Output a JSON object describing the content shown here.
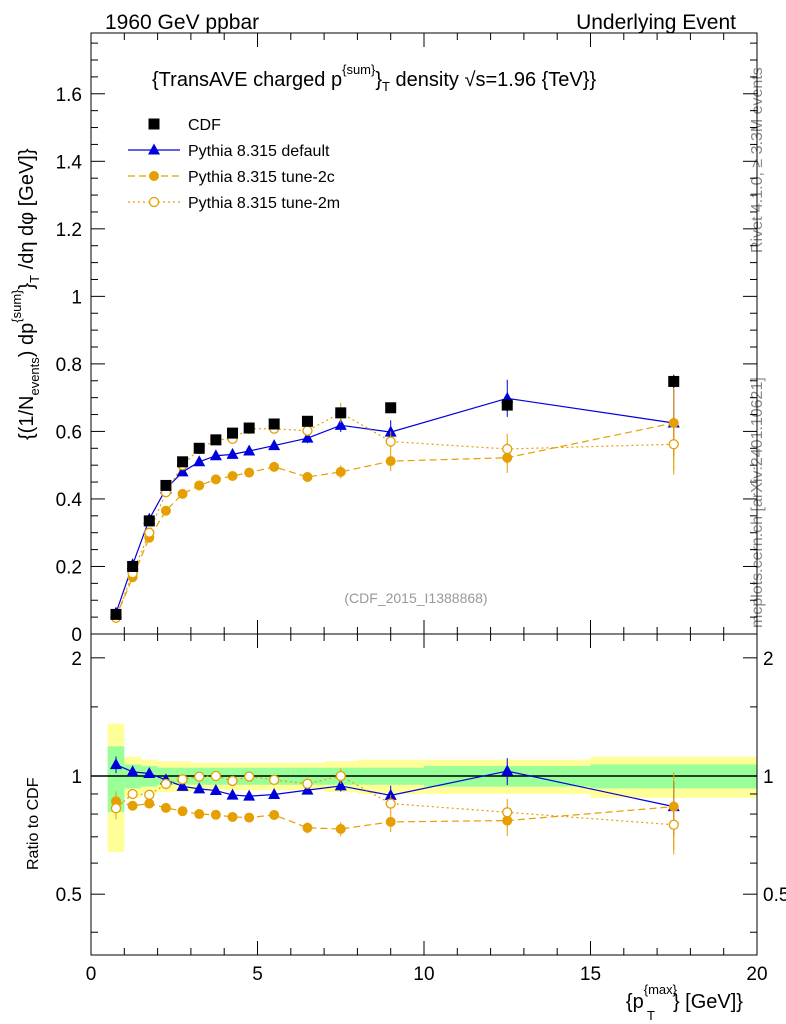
{
  "header": {
    "left": "1960 GeV ppbar",
    "right": "Underlying Event"
  },
  "side": {
    "rivet": "Rivet 4.1.0, ≥ 3.3M events",
    "mcplots": "mcplots.cern.ch [arXiv:2401.10621]"
  },
  "chart_data": {
    "type": "scatter",
    "title": "{TransAVE charged p^{sum}_T density √s=1.96 {TeV}}",
    "title_parts": {
      "pre": "{TransAVE charged p",
      "sup": "{sum}",
      "sub": "}",
      "sub2": "T",
      "post": " density √s=1.96 {TeV}}"
    },
    "analysis_label": "(CDF_2015_I1388868)",
    "ylabel": "{(1/N_events) dp^{sum}_T/dη dφ [GeV]}",
    "ylabel_parts": {
      "a": "{(1/N",
      "b": "events",
      "c": ") dp",
      "d": "{sum}",
      "e": "}",
      "f": "T",
      "g": " /dη  dφ [GeV]}"
    },
    "xlabel_parts": {
      "a": "{p",
      "b": "{max}",
      "c": "T",
      "d": "} [GeV]}"
    },
    "ratio_ylabel": "Ratio to CDF",
    "xlim": [
      0,
      20
    ],
    "ylim": [
      0,
      1.78
    ],
    "ratio_ylim": [
      0.35,
      2.3
    ],
    "xticks": [
      0,
      5,
      10,
      15,
      20
    ],
    "xtick_labels": [
      "0",
      "5",
      "10",
      "15",
      "20"
    ],
    "yticks": [
      0,
      0.2,
      0.4,
      0.6,
      0.8,
      1,
      1.2,
      1.4,
      1.6
    ],
    "ytick_labels": [
      "0",
      "0.2",
      "0.4",
      "0.6",
      "0.8",
      "1",
      "1.2",
      "1.4",
      "1.6"
    ],
    "ratio_yticks": [
      0.5,
      1,
      2
    ],
    "ratio_ytick_labels": [
      "0.5",
      "1",
      "2"
    ],
    "x": [
      0.75,
      1.25,
      1.75,
      2.25,
      2.75,
      3.25,
      3.75,
      4.25,
      4.75,
      5.5,
      6.5,
      7.5,
      9.0,
      12.5,
      17.5
    ],
    "x_edges": [
      0.5,
      1.0,
      1.5,
      2.0,
      2.5,
      3.0,
      3.5,
      4.0,
      4.5,
      5.0,
      6.0,
      7.0,
      8.0,
      10.0,
      15.0,
      20.0
    ],
    "band_inner": [
      0.19,
      0.07,
      0.06,
      0.05,
      0.05,
      0.05,
      0.05,
      0.05,
      0.05,
      0.05,
      0.05,
      0.05,
      0.05,
      0.06,
      0.07
    ],
    "band_outer": [
      0.36,
      0.12,
      0.1,
      0.09,
      0.09,
      0.08,
      0.08,
      0.08,
      0.08,
      0.08,
      0.08,
      0.09,
      0.1,
      0.1,
      0.12
    ],
    "series": [
      {
        "name": "CDF",
        "color": "#000000",
        "marker": "square",
        "linestyle": "none",
        "values": [
          0.058,
          0.2,
          0.335,
          0.44,
          0.51,
          0.55,
          0.575,
          0.595,
          0.61,
          0.622,
          0.63,
          0.655,
          0.67,
          0.678,
          0.748
        ],
        "errors": [
          0.003,
          0.004,
          0.005,
          0.006,
          0.006,
          0.006,
          0.006,
          0.007,
          0.007,
          0.007,
          0.008,
          0.01,
          0.012,
          0.018,
          0.02
        ]
      },
      {
        "name": "Pythia 8.315 default",
        "color": "#0000dd",
        "marker": "triangle",
        "linestyle": "solid",
        "values": [
          0.062,
          0.205,
          0.34,
          0.43,
          0.48,
          0.51,
          0.528,
          0.532,
          0.542,
          0.558,
          0.58,
          0.618,
          0.598,
          0.698,
          0.625
        ],
        "errors": [
          0.003,
          0.004,
          0.005,
          0.006,
          0.007,
          0.007,
          0.008,
          0.009,
          0.01,
          0.011,
          0.015,
          0.02,
          0.035,
          0.055,
          0.1
        ]
      },
      {
        "name": "Pythia 8.315 tune-2c",
        "color": "#e69f00",
        "marker": "circle",
        "linestyle": "dashed",
        "values": [
          0.05,
          0.168,
          0.285,
          0.365,
          0.415,
          0.44,
          0.458,
          0.468,
          0.478,
          0.495,
          0.465,
          0.48,
          0.512,
          0.522,
          0.625
        ],
        "errors": [
          0.003,
          0.004,
          0.005,
          0.006,
          0.007,
          0.007,
          0.008,
          0.009,
          0.01,
          0.011,
          0.015,
          0.02,
          0.03,
          0.045,
          0.14
        ]
      },
      {
        "name": "Pythia 8.315 tune-2m",
        "color": "#e69f00",
        "marker": "open-circle",
        "linestyle": "dotted",
        "values": [
          0.048,
          0.18,
          0.3,
          0.42,
          0.5,
          0.548,
          0.575,
          0.578,
          0.608,
          0.608,
          0.602,
          0.655,
          0.57,
          0.548,
          0.562
        ],
        "errors": [
          0.003,
          0.004,
          0.005,
          0.006,
          0.007,
          0.007,
          0.008,
          0.009,
          0.01,
          0.011,
          0.015,
          0.03,
          0.03,
          0.045,
          0.09
        ]
      }
    ]
  }
}
